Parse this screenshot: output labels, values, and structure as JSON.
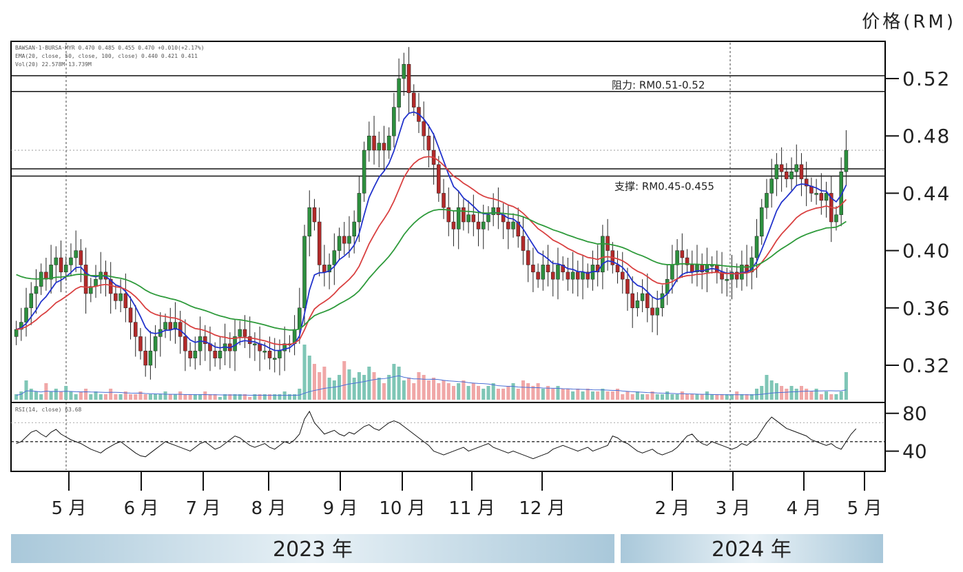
{
  "chart_data": {
    "type": "candlestick",
    "currency_label": "价格(RM)",
    "legend_lines": {
      "ohlc": "BAWSAN·1·BURSA·MYR 0.470 0.485 0.455 0.470 +0.010(+2.17%)",
      "ema": "EMA(20, close, 50, close, 100, close) 0.440 0.421 0.411",
      "volume": "Vol(20) 22.578M 13.739M",
      "rsi": "RSI(14, close) 63.68"
    },
    "y_axis": {
      "price_ticks": [
        "0.52",
        "0.48",
        "0.44",
        "0.40",
        "0.36",
        "0.32"
      ],
      "price_range": [
        0.295,
        0.545
      ],
      "rsi_ticks": [
        "80",
        "40"
      ],
      "rsi_range": [
        20,
        90
      ]
    },
    "months": [
      "5 月",
      "6 月",
      "7 月",
      "8 月",
      "9 月",
      "10 月",
      "11 月",
      "12 月",
      "2 月",
      "3 月",
      "4 月",
      "5 月"
    ],
    "year_labels": [
      "2023 年",
      "2024 年"
    ],
    "levels": [
      {
        "label": "阻力: RM0.51-0.52",
        "range": [
          0.511,
          0.522
        ]
      },
      {
        "label": "支撑: RM0.45-0.455",
        "range": [
          0.452,
          0.457
        ]
      }
    ],
    "dotted_level": 0.47,
    "close_series": [
      0.345,
      0.35,
      0.36,
      0.37,
      0.375,
      0.385,
      0.38,
      0.39,
      0.395,
      0.385,
      0.39,
      0.395,
      0.4,
      0.39,
      0.37,
      0.375,
      0.38,
      0.385,
      0.38,
      0.37,
      0.365,
      0.37,
      0.36,
      0.35,
      0.34,
      0.33,
      0.32,
      0.33,
      0.34,
      0.345,
      0.35,
      0.345,
      0.35,
      0.34,
      0.33,
      0.325,
      0.33,
      0.34,
      0.335,
      0.33,
      0.325,
      0.33,
      0.335,
      0.33,
      0.34,
      0.345,
      0.34,
      0.335,
      0.335,
      0.33,
      0.33,
      0.325,
      0.325,
      0.33,
      0.335,
      0.335,
      0.345,
      0.36,
      0.41,
      0.43,
      0.42,
      0.39,
      0.385,
      0.39,
      0.4,
      0.41,
      0.405,
      0.41,
      0.42,
      0.44,
      0.47,
      0.48,
      0.47,
      0.475,
      0.47,
      0.48,
      0.5,
      0.52,
      0.53,
      0.51,
      0.5,
      0.49,
      0.48,
      0.47,
      0.46,
      0.44,
      0.43,
      0.42,
      0.415,
      0.43,
      0.42,
      0.425,
      0.42,
      0.415,
      0.42,
      0.425,
      0.43,
      0.425,
      0.42,
      0.415,
      0.42,
      0.41,
      0.4,
      0.39,
      0.385,
      0.38,
      0.39,
      0.385,
      0.38,
      0.39,
      0.385,
      0.38,
      0.385,
      0.38,
      0.385,
      0.38,
      0.39,
      0.385,
      0.41,
      0.4,
      0.39,
      0.385,
      0.38,
      0.37,
      0.36,
      0.365,
      0.37,
      0.36,
      0.355,
      0.36,
      0.37,
      0.38,
      0.39,
      0.4,
      0.395,
      0.39,
      0.385,
      0.39,
      0.385,
      0.39,
      0.39,
      0.385,
      0.38,
      0.38,
      0.385,
      0.38,
      0.39,
      0.385,
      0.395,
      0.41,
      0.43,
      0.44,
      0.45,
      0.46,
      0.455,
      0.45,
      0.455,
      0.46,
      0.45,
      0.445,
      0.44,
      0.44,
      0.435,
      0.44,
      0.42,
      0.425,
      0.455,
      0.47
    ],
    "volume_series": [
      0.1,
      0.15,
      0.35,
      0.2,
      0.15,
      0.1,
      0.3,
      0.15,
      0.2,
      0.15,
      0.25,
      0.15,
      0.1,
      0.15,
      0.2,
      0.1,
      0.15,
      0.1,
      0.1,
      0.2,
      0.1,
      0.1,
      0.15,
      0.1,
      0.1,
      0.15,
      0.1,
      0.1,
      0.1,
      0.1,
      0.15,
      0.1,
      0.1,
      0.15,
      0.1,
      0.1,
      0.1,
      0.1,
      0.15,
      0.1,
      0.1,
      0.05,
      0.1,
      0.1,
      0.1,
      0.1,
      0.1,
      0.05,
      0.1,
      0.1,
      0.1,
      0.1,
      0.1,
      0.1,
      0.15,
      0.1,
      0.1,
      0.2,
      1.0,
      0.8,
      0.65,
      0.5,
      0.6,
      0.4,
      0.35,
      0.45,
      0.7,
      0.55,
      0.4,
      0.5,
      0.45,
      0.6,
      0.5,
      0.4,
      0.3,
      0.45,
      0.65,
      0.6,
      0.35,
      0.4,
      0.3,
      0.5,
      0.45,
      0.35,
      0.4,
      0.3,
      0.35,
      0.3,
      0.25,
      0.3,
      0.35,
      0.25,
      0.3,
      0.25,
      0.2,
      0.25,
      0.3,
      0.2,
      0.2,
      0.25,
      0.3,
      0.2,
      0.35,
      0.3,
      0.25,
      0.3,
      0.2,
      0.25,
      0.2,
      0.25,
      0.2,
      0.2,
      0.15,
      0.2,
      0.15,
      0.2,
      0.15,
      0.15,
      0.2,
      0.15,
      0.15,
      0.2,
      0.1,
      0.15,
      0.1,
      0.15,
      0.1,
      0.1,
      0.15,
      0.1,
      0.1,
      0.15,
      0.1,
      0.1,
      0.15,
      0.1,
      0.1,
      0.1,
      0.1,
      0.15,
      0.1,
      0.1,
      0.1,
      0.1,
      0.1,
      0.15,
      0.1,
      0.1,
      0.1,
      0.2,
      0.25,
      0.45,
      0.35,
      0.3,
      0.25,
      0.2,
      0.25,
      0.2,
      0.25,
      0.2,
      0.15,
      0.2,
      0.1,
      0.15,
      0.1,
      0.1,
      0.15,
      0.5,
      0.95,
      1.0
    ],
    "rsi_series": [
      48,
      50,
      55,
      60,
      62,
      58,
      55,
      60,
      63,
      58,
      55,
      52,
      50,
      48,
      45,
      42,
      40,
      38,
      42,
      45,
      48,
      50,
      46,
      42,
      38,
      35,
      34,
      38,
      42,
      46,
      50,
      48,
      46,
      44,
      42,
      40,
      44,
      48,
      50,
      46,
      42,
      44,
      48,
      52,
      56,
      54,
      50,
      46,
      44,
      46,
      48,
      44,
      42,
      46,
      50,
      48,
      52,
      58,
      74,
      82,
      70,
      64,
      58,
      60,
      62,
      58,
      56,
      60,
      58,
      62,
      66,
      68,
      64,
      62,
      66,
      70,
      72,
      70,
      66,
      62,
      58,
      54,
      50,
      46,
      40,
      38,
      36,
      38,
      40,
      42,
      44,
      40,
      42,
      44,
      46,
      48,
      44,
      42,
      40,
      38,
      40,
      38,
      36,
      34,
      32,
      34,
      36,
      38,
      42,
      44,
      46,
      44,
      42,
      40,
      42,
      44,
      40,
      42,
      44,
      46,
      56,
      54,
      50,
      48,
      44,
      40,
      38,
      40,
      42,
      38,
      36,
      38,
      40,
      44,
      50,
      56,
      58,
      52,
      48,
      46,
      50,
      48,
      46,
      44,
      42,
      44,
      48,
      46,
      50,
      54,
      62,
      70,
      76,
      72,
      68,
      64,
      62,
      60,
      58,
      56,
      52,
      50,
      48,
      46,
      48,
      44,
      42,
      50,
      58,
      63.68
    ]
  }
}
